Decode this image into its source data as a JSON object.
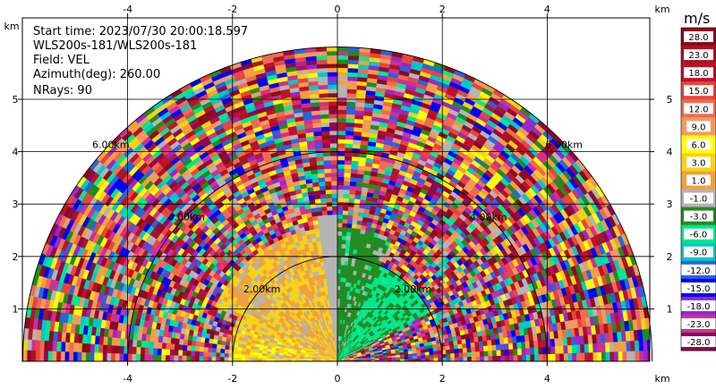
{
  "info": {
    "start_time": "Start time: 2023/07/30 20:00:18.597",
    "instrument": "WLS200s-181/WLS200s-181",
    "field": "Field: VEL",
    "azimuth": "Azimuth(deg): 260.00",
    "nrays": "NRays: 90"
  },
  "chart_data": {
    "type": "heatmap",
    "subtype": "radar-rhi-sector",
    "x_axis": {
      "unit": "km",
      "ticks": [
        -4,
        -2,
        0,
        2,
        4
      ],
      "range": [
        -6.1,
        6.1
      ]
    },
    "y_axis": {
      "unit": "km",
      "ticks": [
        1,
        2,
        3,
        4,
        5
      ],
      "range": [
        0,
        5.95
      ]
    },
    "max_range_km": 6.0,
    "range_rings": [
      {
        "radius": 2.0,
        "label": "2.00km"
      },
      {
        "radius": 4.0,
        "label": "4.00km"
      },
      {
        "radius": 6.0,
        "label": "6.00km"
      }
    ],
    "grid": true,
    "colorbar": {
      "unit": "m/s",
      "labels": [
        "28.0",
        "23.0",
        "18.0",
        "15.0",
        "12.0",
        "9.0",
        "6.0",
        "3.0",
        "1.0",
        "-1.0",
        "-3.0",
        "-6.0",
        "-9.0",
        "-12.0",
        "-15.0",
        "-18.0",
        "-23.0",
        "-28.0"
      ],
      "colors": [
        "#8b0a1e",
        "#a81428",
        "#c0102a",
        "#e8453c",
        "#f06a52",
        "#f49a5c",
        "#ffff00",
        "#f6d316",
        "#f0a040",
        "#b4b4b4",
        "#228b22",
        "#00e88c",
        "#00c8c8",
        "#2864dc",
        "#0000ff",
        "#9628c8",
        "#cc3098",
        "#8c0a50"
      ]
    }
  }
}
